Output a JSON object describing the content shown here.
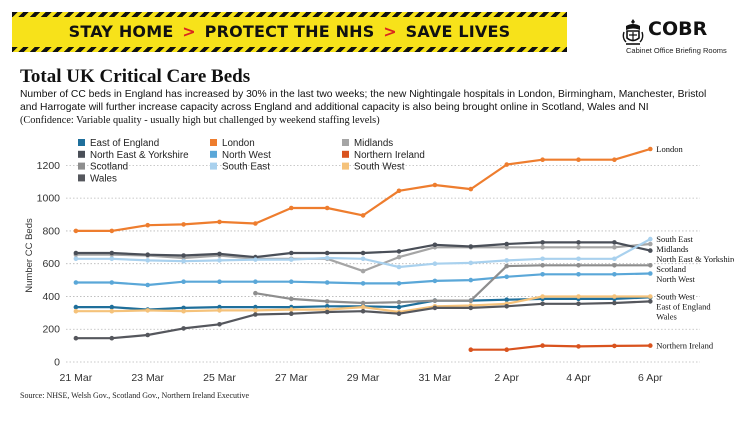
{
  "banner": {
    "part1": "STAY HOME",
    "part2": "PROTECT THE NHS",
    "part3": "SAVE LIVES",
    "separator": ">",
    "background_color": "#f7e21a",
    "arrow_color": "#d9281e"
  },
  "logo": {
    "title": "COBR",
    "subtitle": "Cabinet Office Briefing Rooms",
    "icon": "royal-crest-icon"
  },
  "header": {
    "title": "Total UK Critical Care Beds",
    "description": "Number of CC beds in England has increased by 30% in the last two weeks; the new Nightingale hospitals in London, Birmingham, Manchester, Bristol and Harrogate will further increase capacity across England and additional capacity is also being brought online in Scotland, Wales and NI",
    "confidence": "(Confidence: Variable quality - usually high but challenged by weekend staffing levels)"
  },
  "footer": {
    "source": "Source: NHSE, Welsh Gov., Scotland Gov., Northern Ireland Executive"
  },
  "chart_data": {
    "type": "line",
    "title": "",
    "xlabel": "",
    "ylabel": "Number CC Beds",
    "ylim": [
      0,
      1300
    ],
    "yticks": [
      0,
      200,
      400,
      600,
      800,
      1000,
      1200
    ],
    "grid": "horizontal dotted",
    "legend_position": "top-left",
    "x": [
      "20 Mar",
      "21 Mar",
      "22 Mar",
      "23 Mar",
      "24 Mar",
      "25 Mar",
      "26 Mar",
      "27 Mar",
      "28 Mar",
      "29 Mar",
      "30 Mar",
      "31 Mar",
      "1 Apr",
      "2 Apr",
      "3 Apr",
      "4 Apr",
      "5 Apr",
      "6 Apr"
    ],
    "xtick_labels": [
      "21 Mar",
      "23 Mar",
      "25 Mar",
      "27 Mar",
      "29 Mar",
      "31 Mar",
      "2 Apr",
      "4 Apr",
      "6 Apr"
    ],
    "series": [
      {
        "name": "East of England",
        "color": "#1f6f9b",
        "end_label": "East of England",
        "values": [
          null,
          335,
          335,
          320,
          330,
          335,
          335,
          335,
          340,
          340,
          335,
          375,
          375,
          380,
          385,
          385,
          385,
          395
        ]
      },
      {
        "name": "London",
        "color": "#ee7d2e",
        "end_label": "London",
        "values": [
          null,
          800,
          800,
          835,
          840,
          855,
          845,
          940,
          940,
          895,
          1045,
          1080,
          1055,
          1205,
          1235,
          1235,
          1235,
          1300
        ]
      },
      {
        "name": "Midlands",
        "color": "#a5a5a5",
        "end_label": "Midlands",
        "values": [
          null,
          655,
          655,
          650,
          635,
          650,
          630,
          630,
          630,
          555,
          640,
          700,
          700,
          700,
          700,
          700,
          700,
          720
        ]
      },
      {
        "name": "North East & Yorkshire",
        "color": "#4a4f58",
        "end_label": "North East & Yorkshire",
        "values": [
          null,
          665,
          665,
          655,
          650,
          660,
          640,
          665,
          665,
          665,
          675,
          715,
          705,
          720,
          730,
          730,
          730,
          680
        ]
      },
      {
        "name": "North West",
        "color": "#5aa7d8",
        "end_label": "North West",
        "values": [
          null,
          485,
          485,
          470,
          490,
          490,
          490,
          490,
          485,
          480,
          480,
          495,
          500,
          520,
          535,
          535,
          535,
          540
        ]
      },
      {
        "name": "Northern Ireland",
        "color": "#d9531e",
        "end_label": "Northern Ireland",
        "values": [
          null,
          null,
          null,
          null,
          null,
          null,
          null,
          null,
          null,
          null,
          null,
          null,
          75,
          75,
          100,
          95,
          98,
          100
        ]
      },
      {
        "name": "Scotland",
        "color": "#8e8e8e",
        "end_label": "Scotland",
        "values": [
          null,
          null,
          null,
          null,
          null,
          null,
          420,
          385,
          370,
          360,
          365,
          375,
          375,
          585,
          590,
          590,
          590,
          590
        ]
      },
      {
        "name": "South East",
        "color": "#a9d1ee",
        "end_label": "South East",
        "values": [
          null,
          630,
          630,
          620,
          615,
          620,
          625,
          625,
          635,
          630,
          580,
          600,
          605,
          620,
          630,
          630,
          630,
          750
        ]
      },
      {
        "name": "South West",
        "color": "#f5c27a",
        "end_label": "South West",
        "values": [
          null,
          310,
          310,
          315,
          310,
          315,
          315,
          320,
          320,
          335,
          305,
          340,
          345,
          355,
          400,
          400,
          400,
          400
        ]
      },
      {
        "name": "Wales",
        "color": "#55575d",
        "end_label": "Wales",
        "values": [
          null,
          145,
          145,
          165,
          205,
          230,
          290,
          295,
          305,
          310,
          295,
          330,
          330,
          340,
          355,
          355,
          360,
          370
        ]
      }
    ]
  }
}
